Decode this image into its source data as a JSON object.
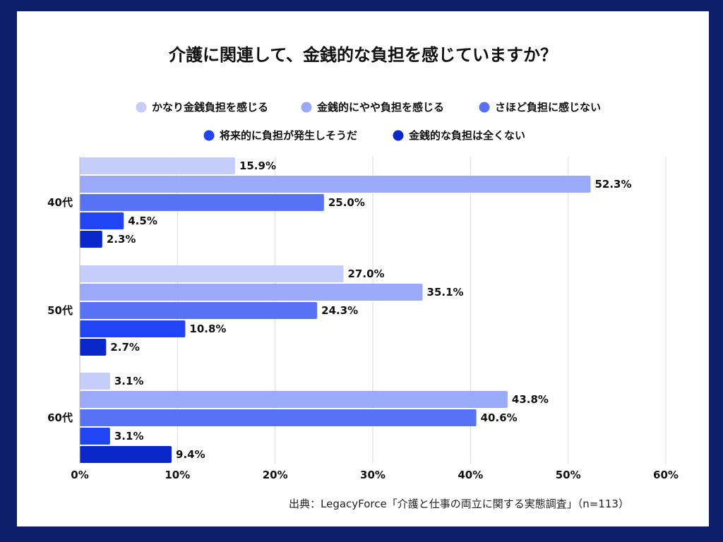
{
  "chart_data": {
    "type": "bar",
    "orientation": "horizontal",
    "title": "介護に関連して、金銭的な負担を感じていますか？",
    "categories": [
      "40代",
      "50代",
      "60代"
    ],
    "series": [
      {
        "name": "かなり金銭負担を感じる",
        "values": [
          15.9,
          27.0,
          3.1
        ],
        "color": "#c5cdfb"
      },
      {
        "name": "金銭的にやや負担を感じる",
        "values": [
          52.3,
          35.1,
          43.8
        ],
        "color": "#9aaaf9"
      },
      {
        "name": "さほど負担に感じない",
        "values": [
          25.0,
          24.3,
          40.6
        ],
        "color": "#5872f5"
      },
      {
        "name": "将来的に負担が発生しそうだ",
        "values": [
          4.5,
          10.8,
          3.1
        ],
        "color": "#2145f5"
      },
      {
        "name": "金銭的な負担は全くない",
        "values": [
          2.3,
          2.7,
          9.4
        ],
        "color": "#0a27c9"
      }
    ],
    "xlim": [
      0,
      60
    ],
    "xticks": [
      "0%",
      "10%",
      "20%",
      "30%",
      "40%",
      "50%",
      "60%"
    ],
    "value_suffix": "%",
    "grid": true,
    "legend_position": "top",
    "source": "出典：LegacyForce「介護と仕事の両立に関する実態調査」（n=113）"
  }
}
